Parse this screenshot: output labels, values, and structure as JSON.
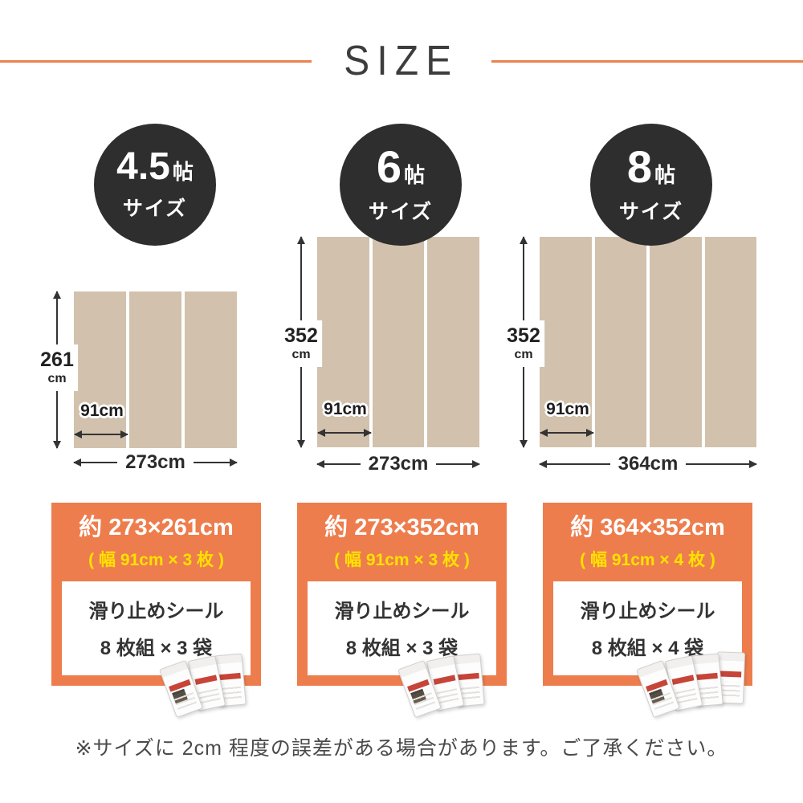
{
  "title": "SIZE",
  "colors": {
    "accent_orange": "#ee7d4d",
    "highlight_yellow": "#ffe100",
    "badge_dark": "#2e2e2e",
    "rug_beige": "#d2c1ac",
    "arrow_dark": "#333333"
  },
  "columns": [
    {
      "badge_value": "4.5",
      "badge_unit": "帖",
      "badge_label": "サイズ",
      "panel_count": 3,
      "height_value": "261",
      "height_unit": "cm",
      "panel_width_label": "91cm",
      "total_width_label": "273cm",
      "size_line": "約 273×261cm",
      "width_line": "( 幅 91cm × 3 枚 )",
      "seal_title": "滑り止めシール",
      "seal_detail": "8 枚組 × 3 袋",
      "bag_count": 3
    },
    {
      "badge_value": "6",
      "badge_unit": "帖",
      "badge_label": "サイズ",
      "panel_count": 3,
      "height_value": "352",
      "height_unit": "cm",
      "panel_width_label": "91cm",
      "total_width_label": "273cm",
      "size_line": "約 273×352cm",
      "width_line": "( 幅 91cm × 3 枚 )",
      "seal_title": "滑り止めシール",
      "seal_detail": "8 枚組 × 3 袋",
      "bag_count": 3
    },
    {
      "badge_value": "8",
      "badge_unit": "帖",
      "badge_label": "サイズ",
      "panel_count": 4,
      "height_value": "352",
      "height_unit": "cm",
      "panel_width_label": "91cm",
      "total_width_label": "364cm",
      "size_line": "約 364×352cm",
      "width_line": "( 幅 91cm × 4 枚 )",
      "seal_title": "滑り止めシール",
      "seal_detail": "8 枚組 × 4 袋",
      "bag_count": 4
    }
  ],
  "footer_note": "※サイズに 2cm 程度の誤差がある場合があります。ご了承ください。"
}
